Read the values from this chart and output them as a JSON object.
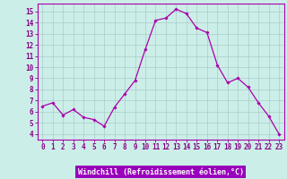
{
  "x": [
    0,
    1,
    2,
    3,
    4,
    5,
    6,
    7,
    8,
    9,
    10,
    11,
    12,
    13,
    14,
    15,
    16,
    17,
    18,
    19,
    20,
    21,
    22,
    23
  ],
  "y": [
    6.5,
    6.8,
    5.7,
    6.2,
    5.5,
    5.3,
    4.7,
    6.4,
    7.6,
    8.8,
    11.6,
    14.2,
    14.4,
    15.2,
    14.8,
    13.5,
    13.1,
    10.2,
    8.6,
    9.0,
    8.2,
    6.8,
    5.6,
    4.0
  ],
  "line_color": "#aa00aa",
  "marker": "D",
  "marker_size": 1.8,
  "line_width": 0.9,
  "bg_color": "#cceee8",
  "grid_color": "#aacccc",
  "xlabel": "Windchill (Refroidissement éolien,°C)",
  "tick_color": "#880088",
  "ylim": [
    3.5,
    15.7
  ],
  "xlim": [
    -0.5,
    23.5
  ],
  "yticks": [
    4,
    5,
    6,
    7,
    8,
    9,
    10,
    11,
    12,
    13,
    14,
    15
  ],
  "xticks": [
    0,
    1,
    2,
    3,
    4,
    5,
    6,
    7,
    8,
    9,
    10,
    11,
    12,
    13,
    14,
    15,
    16,
    17,
    18,
    19,
    20,
    21,
    22,
    23
  ],
  "xtick_labels": [
    "0",
    "1",
    "2",
    "3",
    "4",
    "5",
    "6",
    "7",
    "8",
    "9",
    "10",
    "11",
    "12",
    "13",
    "14",
    "15",
    "16",
    "17",
    "18",
    "19",
    "20",
    "21",
    "22",
    "23"
  ],
  "spine_color": "#aa00aa",
  "xlabel_bg": "#9900bb",
  "xlabel_text_color": "#ffffff",
  "tick_fontsize": 5.5,
  "xlabel_fontsize": 6.0
}
